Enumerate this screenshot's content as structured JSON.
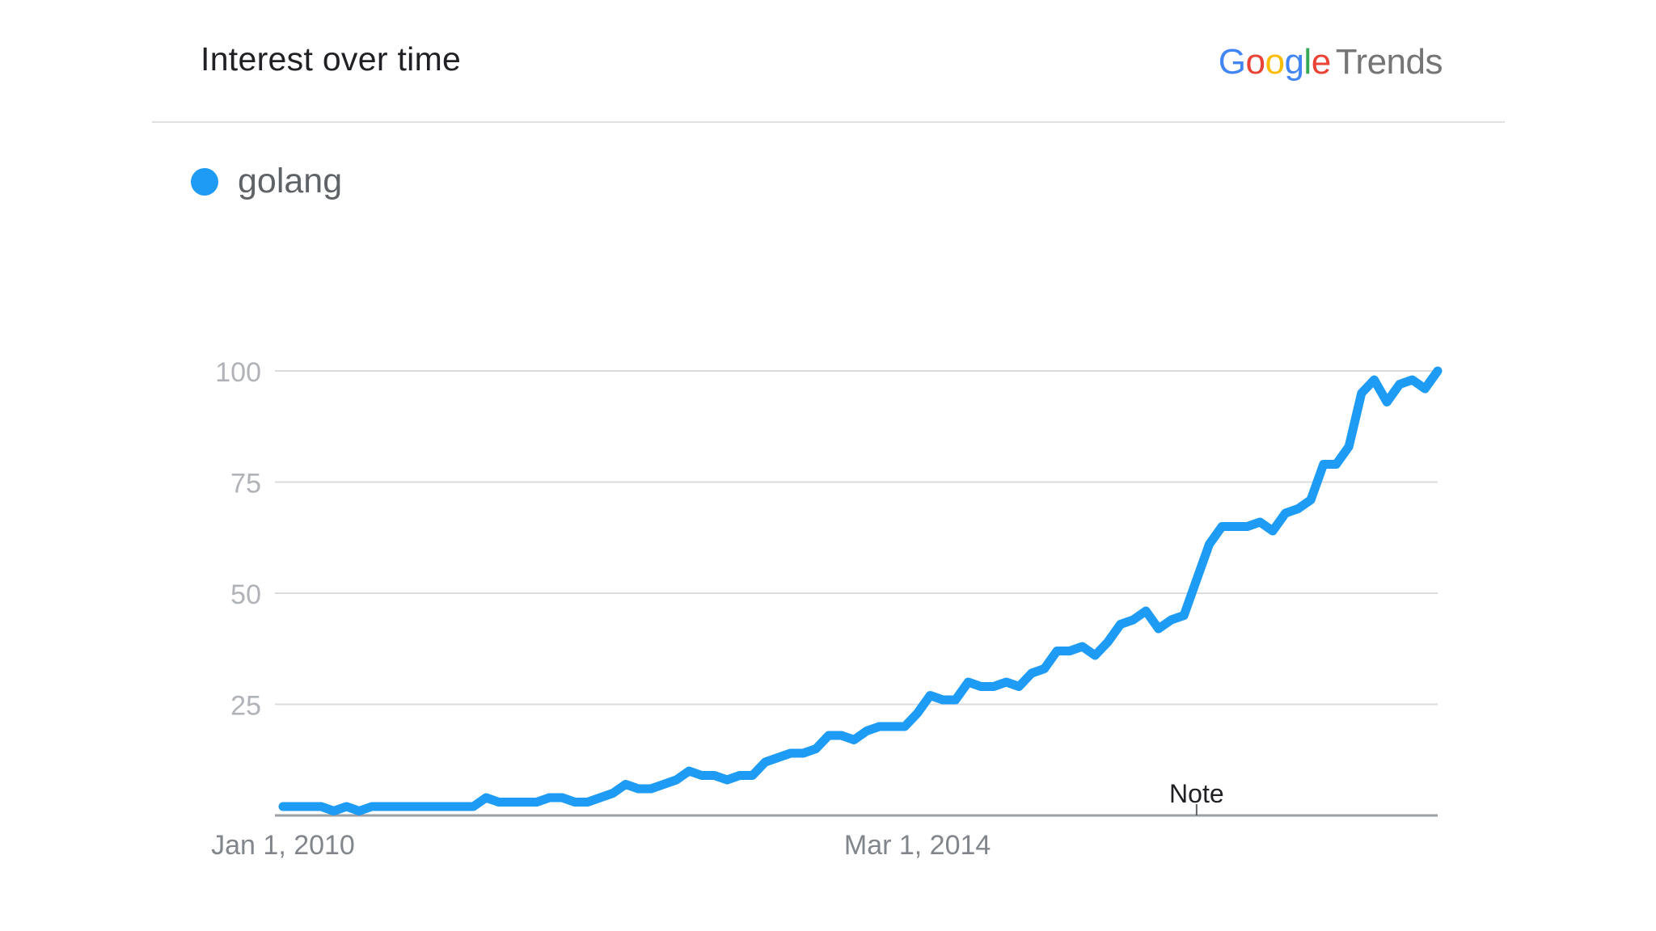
{
  "header": {
    "title": "Interest over time",
    "logo": {
      "brand_letters": [
        {
          "char": "G",
          "color": "#4285F4"
        },
        {
          "char": "o",
          "color": "#EA4335"
        },
        {
          "char": "o",
          "color": "#FBBC05"
        },
        {
          "char": "g",
          "color": "#4285F4"
        },
        {
          "char": "l",
          "color": "#34A853"
        },
        {
          "char": "e",
          "color": "#EA4335"
        }
      ],
      "product": "Trends"
    }
  },
  "legend": {
    "label": "golang",
    "color": "#1E9BF5"
  },
  "chart_data": {
    "type": "line",
    "title": "Interest over time",
    "xlabel": "",
    "ylabel": "",
    "ylim": [
      0,
      100
    ],
    "yticks": [
      25,
      50,
      75,
      100
    ],
    "xticks": [
      {
        "label": "Jan 1, 2010",
        "index": 0
      },
      {
        "label": "Mar 1, 2014",
        "index": 50
      }
    ],
    "annotations": [
      {
        "label": "Note",
        "index": 72
      }
    ],
    "grid": true,
    "legend_position": "top-left",
    "series": [
      {
        "name": "golang",
        "color": "#1E9BF5",
        "values": [
          2,
          2,
          2,
          2,
          1,
          2,
          1,
          2,
          2,
          2,
          2,
          2,
          2,
          2,
          2,
          2,
          4,
          3,
          3,
          3,
          3,
          4,
          4,
          3,
          3,
          4,
          5,
          7,
          6,
          6,
          7,
          8,
          10,
          9,
          9,
          8,
          9,
          9,
          12,
          13,
          14,
          14,
          15,
          18,
          18,
          17,
          19,
          20,
          20,
          20,
          23,
          27,
          26,
          26,
          30,
          29,
          29,
          30,
          29,
          32,
          33,
          37,
          37,
          38,
          36,
          39,
          43,
          44,
          46,
          42,
          44,
          45,
          53,
          61,
          65,
          65,
          65,
          66,
          64,
          68,
          69,
          71,
          79,
          79,
          83,
          95,
          98,
          93,
          97,
          98,
          96,
          100
        ]
      }
    ]
  }
}
